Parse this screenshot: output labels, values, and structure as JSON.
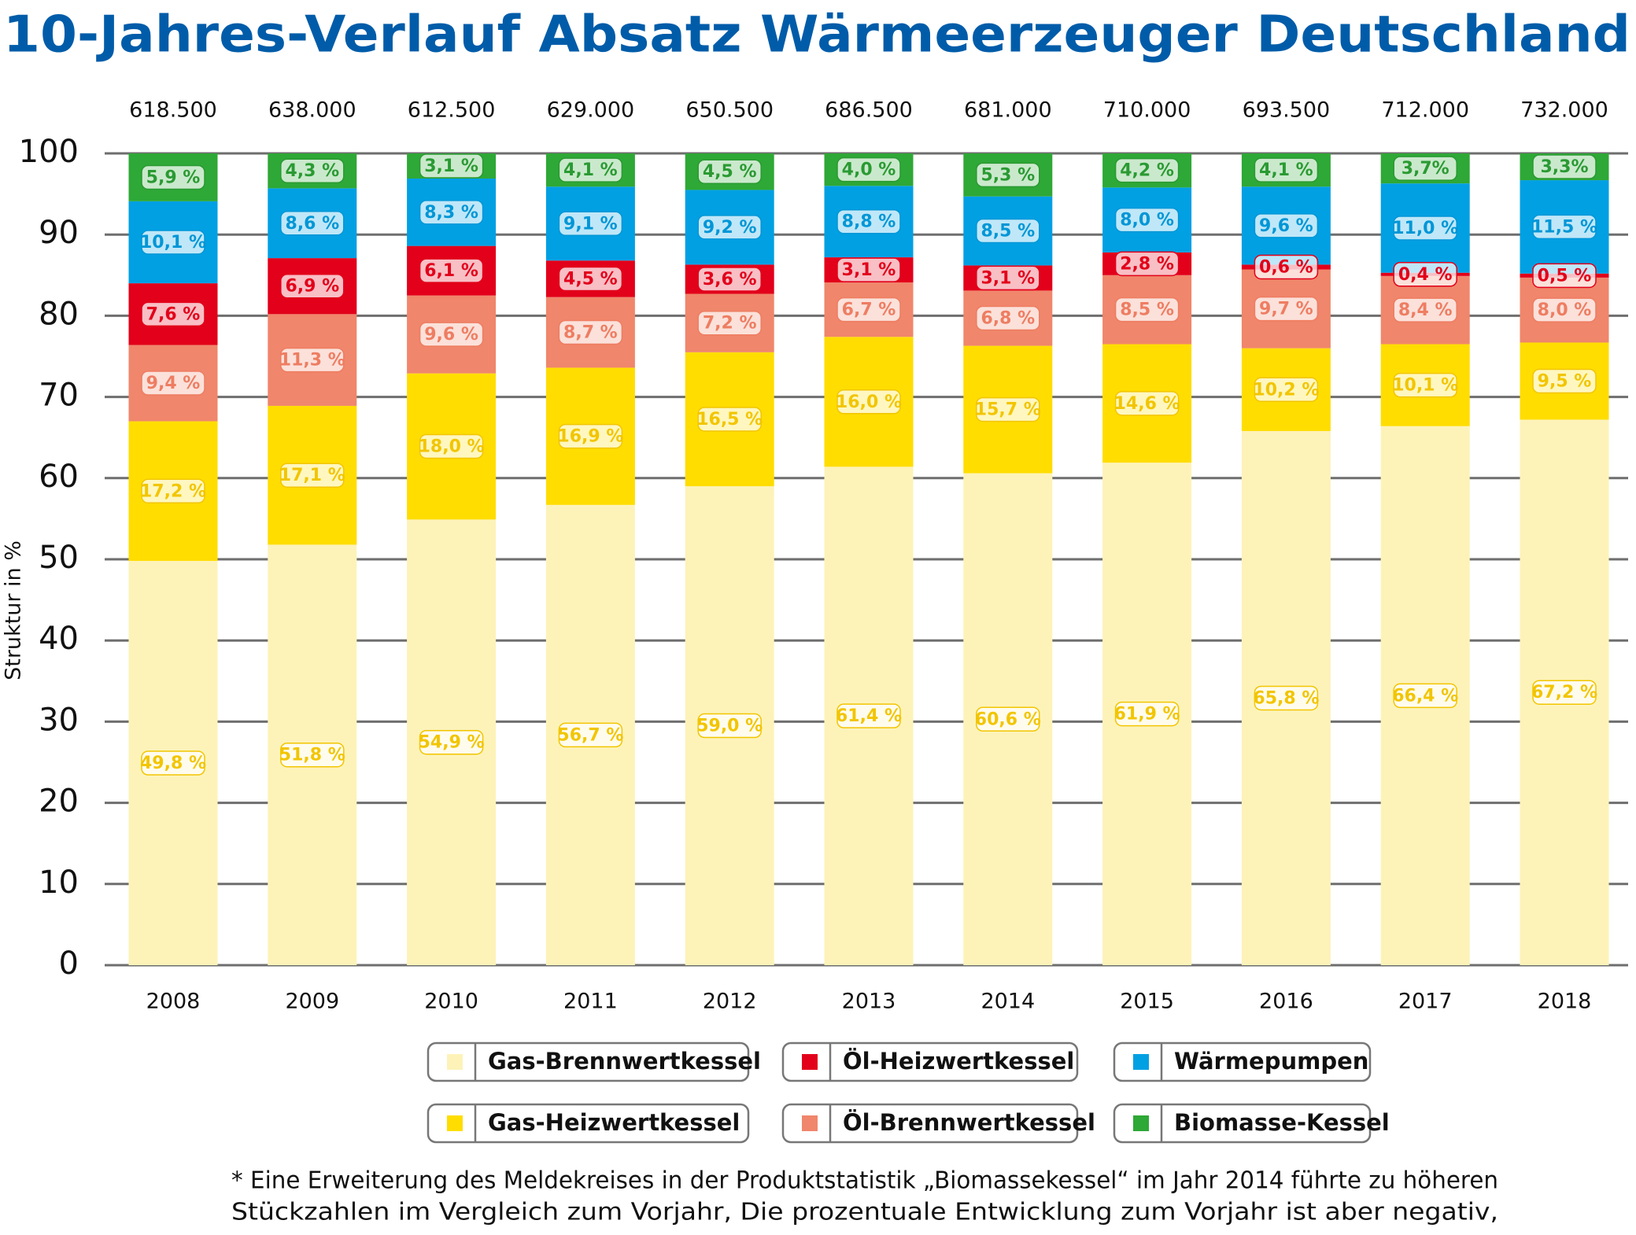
{
  "chart_data": {
    "type": "stacked_bar",
    "title": "10-Jahres-Verlauf Absatz Wärmeerzeuger Deutschland",
    "y_label": "Struktur in %",
    "categories": [
      "2008",
      "2009",
      "2010",
      "2011",
      "2012",
      "2013",
      "2014",
      "2015",
      "2016",
      "2017",
      "2018"
    ],
    "totals": {
      "values": [
        618500,
        638000,
        612500,
        629000,
        650500,
        686500,
        681000,
        710000,
        693500,
        712000,
        732000
      ],
      "value_labels": [
        "618.500",
        "638.000",
        "612.500",
        "629.000",
        "650.500",
        "686.500",
        "681.000",
        "710.000",
        "693.500",
        "712.000",
        "732.000"
      ]
    },
    "ylim": [
      0,
      100
    ],
    "yticks": [
      0,
      10,
      20,
      30,
      40,
      50,
      60,
      70,
      80,
      90,
      100
    ],
    "grid": true,
    "series": [
      {
        "name": "Gas-Brennwertkessel",
        "color": "#fdf3b9",
        "values": [
          49.8,
          51.8,
          54.9,
          56.7,
          59.0,
          61.4,
          60.6,
          61.9,
          65.8,
          66.4,
          67.2
        ],
        "value_labels": [
          "49,8 %",
          "51,8 %",
          "54,9 %",
          "56,7 %",
          "59,0 %",
          "61,4 %",
          "60,6 %",
          "61,9 %",
          "65,8 %",
          "66,4 %",
          "67,2 %"
        ]
      },
      {
        "name": "Gas-Heizwertkessel",
        "color": "#ffdd00",
        "values": [
          17.2,
          17.1,
          18.0,
          16.9,
          16.5,
          16.0,
          15.7,
          14.6,
          10.2,
          10.1,
          9.5
        ],
        "value_labels": [
          "17,2 %",
          "17,1 %",
          "18,0 %",
          "16,9 %",
          "16,5 %",
          "16,0 %",
          "15,7 %",
          "14,6 %",
          "10,2 %",
          "10,1 %",
          "9,5 %"
        ]
      },
      {
        "name": "Öl-Brennwertkessel",
        "color": "#f0866b",
        "values": [
          9.4,
          11.3,
          9.6,
          8.7,
          7.2,
          6.7,
          6.8,
          8.5,
          9.7,
          8.4,
          8.0
        ],
        "value_labels": [
          "9,4 %",
          "11,3 %",
          "9,6 %",
          "8,7 %",
          "7,2 %",
          "6,7 %",
          "6,8 %",
          "8,5 %",
          "9,7 %",
          "8,4 %",
          "8,0 %"
        ]
      },
      {
        "name": "Öl-Heizwertkessel",
        "color": "#e2001a",
        "values": [
          7.6,
          6.9,
          6.1,
          4.5,
          3.6,
          3.1,
          3.1,
          2.8,
          0.6,
          0.4,
          0.5
        ],
        "value_labels": [
          "7,6 %",
          "6,9 %",
          "6,1 %",
          "4,5 %",
          "3,6 %",
          "3,1 %",
          "3,1 %",
          "2,8 %",
          "0,6 %",
          "0,4 %",
          "0,5 %"
        ]
      },
      {
        "name": "Wärmepumpen",
        "color": "#00a0e3",
        "values": [
          10.1,
          8.6,
          8.3,
          9.1,
          9.2,
          8.8,
          8.5,
          8.0,
          9.6,
          11.0,
          11.5
        ],
        "value_labels": [
          "10,1 %",
          "8,6 %",
          "8,3 %",
          "9,1 %",
          "9,2 %",
          "8,8 %",
          "8,5 %",
          "8,0 %",
          "9,6 %",
          "11,0 %",
          "11,5 %"
        ]
      },
      {
        "name": "Biomasse-Kessel",
        "color": "#2ea836",
        "values": [
          5.9,
          4.3,
          3.1,
          4.1,
          4.5,
          4.0,
          5.3,
          4.2,
          4.1,
          3.7,
          3.3
        ],
        "value_labels": [
          "5,9 %",
          "4,3 %",
          "3,1 %",
          "4,1 %",
          "4,5 %",
          "4,0 %",
          "5,3 %",
          "4,2 %",
          "4,1 %",
          "3,7%",
          "3,3%"
        ]
      }
    ],
    "footnote": [
      "* Eine Erweiterung des Meldekreises in der Produktstatistik „Biomassekessel“ im Jahr 2014 führte zu höheren",
      "Stückzahlen im Vergleich zum Vorjahr, Die prozentuale Entwicklung zum Vorjahr ist aber negativ,"
    ]
  }
}
